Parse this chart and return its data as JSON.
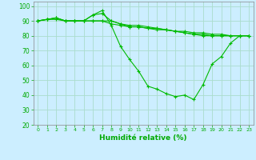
{
  "title": "",
  "xlabel": "Humidité relative (%)",
  "ylabel": "",
  "background_color": "#cceeff",
  "grid_color": "#aaddcc",
  "line_color": "#00bb00",
  "xlim": [
    -0.5,
    23.5
  ],
  "ylim": [
    20,
    103
  ],
  "yticks": [
    20,
    30,
    40,
    50,
    60,
    70,
    80,
    90,
    100
  ],
  "xticks": [
    0,
    1,
    2,
    3,
    4,
    5,
    6,
    7,
    8,
    9,
    10,
    11,
    12,
    13,
    14,
    15,
    16,
    17,
    18,
    19,
    20,
    21,
    22,
    23
  ],
  "series": [
    [
      90,
      91,
      92,
      90,
      90,
      90,
      94,
      97,
      87,
      73,
      64,
      56,
      46,
      44,
      41,
      39,
      40,
      37,
      47,
      61,
      66,
      75,
      80,
      80
    ],
    [
      90,
      91,
      92,
      90,
      90,
      90,
      94,
      95,
      90,
      88,
      86,
      86,
      85,
      84,
      84,
      83,
      83,
      82,
      82,
      81,
      81,
      80,
      80,
      80
    ],
    [
      90,
      91,
      92,
      90,
      90,
      90,
      90,
      90,
      90,
      88,
      87,
      87,
      86,
      85,
      84,
      83,
      82,
      81,
      81,
      80,
      80,
      80,
      80,
      80
    ],
    [
      90,
      91,
      91,
      90,
      90,
      90,
      90,
      90,
      88,
      87,
      86,
      86,
      85,
      85,
      84,
      83,
      82,
      81,
      80,
      80,
      80,
      80,
      80,
      80
    ]
  ]
}
